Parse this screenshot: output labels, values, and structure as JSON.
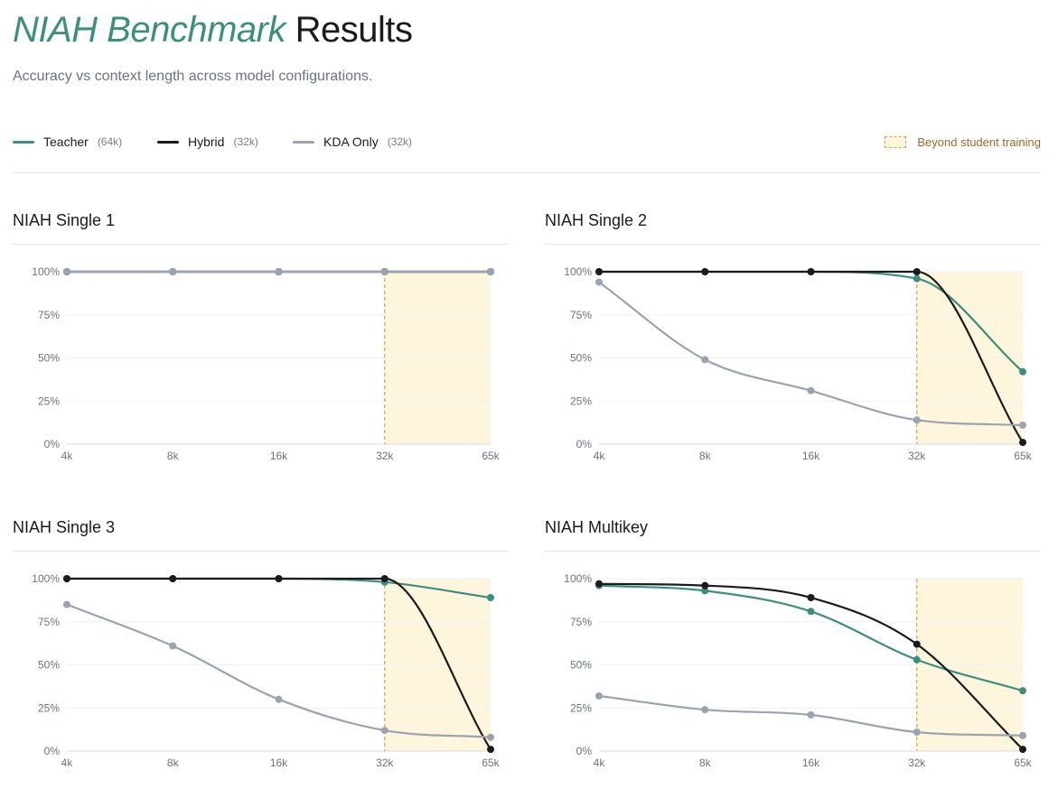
{
  "header": {
    "title_accent": "NIAH Benchmark",
    "title_rest": "Results",
    "subtitle": "Accuracy vs context length across model configurations."
  },
  "legend": {
    "series": [
      {
        "name": "Teacher",
        "note": "(64k)",
        "color": "#3c8f80"
      },
      {
        "name": "Hybrid",
        "note": "(32k)",
        "color": "#1b1b1b"
      },
      {
        "name": "KDA Only",
        "note": "(32k)",
        "color": "#9aa3b2"
      }
    ],
    "beyond_label": "Beyond student training",
    "beyond_fill": "#fdf6dc",
    "beyond_line": "#d9a441"
  },
  "chart_data": [
    {
      "type": "line",
      "title": "NIAH Single 1",
      "categories": [
        "4k",
        "8k",
        "16k",
        "32k",
        "65k"
      ],
      "yticks": [
        "0%",
        "25%",
        "50%",
        "75%",
        "100%"
      ],
      "ylim": [
        0,
        100
      ],
      "beyond_from": "32k",
      "series": [
        {
          "name": "Teacher",
          "values": [
            100,
            100,
            100,
            100,
            100
          ]
        },
        {
          "name": "Hybrid",
          "values": [
            100,
            100,
            100,
            100,
            100
          ]
        },
        {
          "name": "KDA Only",
          "values": [
            100,
            100,
            100,
            100,
            100
          ]
        }
      ]
    },
    {
      "type": "line",
      "title": "NIAH Single 2",
      "categories": [
        "4k",
        "8k",
        "16k",
        "32k",
        "65k"
      ],
      "yticks": [
        "0%",
        "25%",
        "50%",
        "75%",
        "100%"
      ],
      "ylim": [
        0,
        100
      ],
      "beyond_from": "32k",
      "series": [
        {
          "name": "Teacher",
          "values": [
            100,
            100,
            100,
            96,
            42
          ]
        },
        {
          "name": "Hybrid",
          "values": [
            100,
            100,
            100,
            100,
            1
          ]
        },
        {
          "name": "KDA Only",
          "values": [
            94,
            49,
            31,
            14,
            11
          ]
        }
      ]
    },
    {
      "type": "line",
      "title": "NIAH Single 3",
      "categories": [
        "4k",
        "8k",
        "16k",
        "32k",
        "65k"
      ],
      "yticks": [
        "0%",
        "25%",
        "50%",
        "75%",
        "100%"
      ],
      "ylim": [
        0,
        100
      ],
      "beyond_from": "32k",
      "series": [
        {
          "name": "Teacher",
          "values": [
            100,
            100,
            100,
            98,
            89
          ]
        },
        {
          "name": "Hybrid",
          "values": [
            100,
            100,
            100,
            100,
            1
          ]
        },
        {
          "name": "KDA Only",
          "values": [
            85,
            61,
            30,
            12,
            8
          ]
        }
      ]
    },
    {
      "type": "line",
      "title": "NIAH Multikey",
      "categories": [
        "4k",
        "8k",
        "16k",
        "32k",
        "65k"
      ],
      "yticks": [
        "0%",
        "25%",
        "50%",
        "75%",
        "100%"
      ],
      "ylim": [
        0,
        100
      ],
      "beyond_from": "32k",
      "series": [
        {
          "name": "Teacher",
          "values": [
            96,
            93,
            81,
            53,
            35
          ]
        },
        {
          "name": "Hybrid",
          "values": [
            97,
            96,
            89,
            62,
            1
          ]
        },
        {
          "name": "KDA Only",
          "values": [
            32,
            24,
            21,
            11,
            9
          ]
        }
      ]
    }
  ]
}
